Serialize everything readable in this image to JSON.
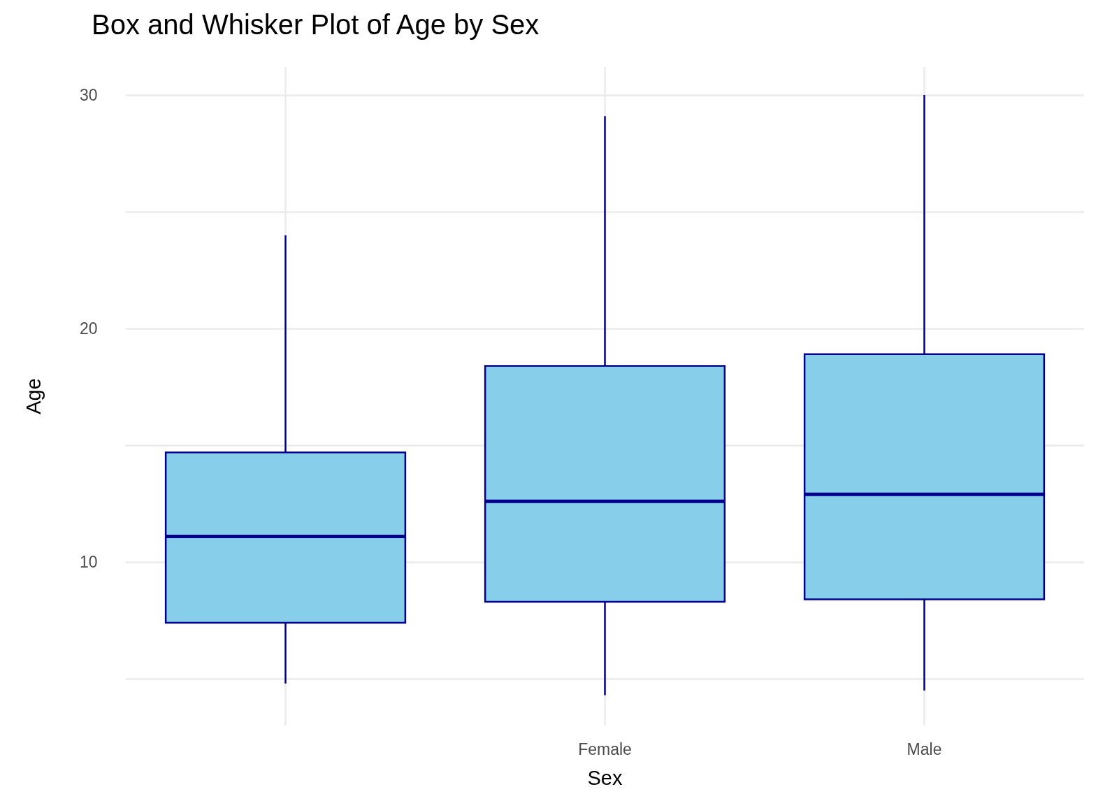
{
  "chart_data": {
    "type": "box",
    "title": "Box and Whisker Plot of Age by Sex",
    "xlabel": "Sex",
    "ylabel": "Age",
    "categories": [
      null,
      "Female",
      "Male"
    ],
    "series": [
      {
        "color": "#87ceeb",
        "boxes": [
          {
            "low": 4.8,
            "q1": 7.4,
            "median": 11.1,
            "q3": 14.7,
            "high": 24
          },
          {
            "low": 4.3,
            "q1": 8.3,
            "median": 12.6,
            "q3": 18.4,
            "high": 29.1
          },
          {
            "low": 4.5,
            "q1": 8.4,
            "median": 12.9,
            "q3": 18.9,
            "high": 30
          }
        ]
      }
    ],
    "ylim": [
      3,
      31.2
    ],
    "yticks": [
      {
        "value": 5,
        "label": null
      },
      10,
      {
        "value": 15,
        "label": null
      },
      20,
      {
        "value": 25,
        "label": null
      },
      30
    ],
    "grid": true
  }
}
